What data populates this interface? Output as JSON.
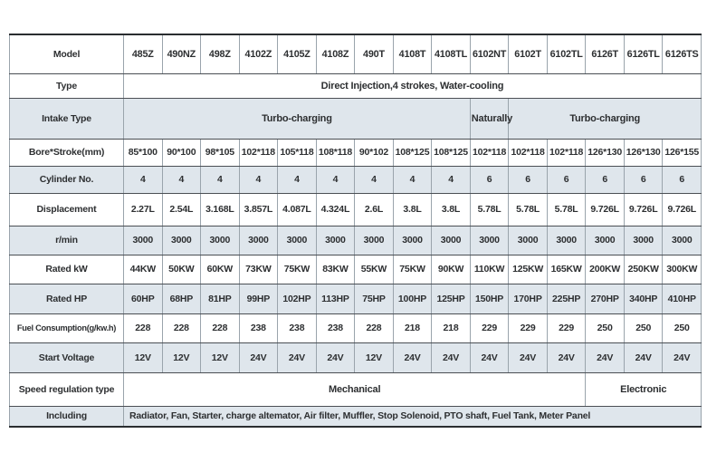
{
  "colors": {
    "row_shade": "#dfe6ec",
    "row_white": "#ffffff",
    "border_horizontal": "#4b4f54",
    "border_vertical": "#9aa4ac",
    "border_outer": "#2a2d30",
    "text": "#2d2f31"
  },
  "table": {
    "rows": [
      {
        "label": "Model",
        "cells": [
          "485Z",
          "490NZ",
          "498Z",
          "4102Z",
          "4105Z",
          "4108Z",
          "490T",
          "4108T",
          "4108TL",
          "6102NT",
          "6102T",
          "6102TL",
          "6126T",
          "6126TL",
          "6126TS"
        ]
      },
      {
        "label": "Type",
        "cells": [
          "Direct Injection,4 strokes, Water-cooling"
        ],
        "spans": [
          15
        ]
      },
      {
        "label": "Intake Type",
        "cells": [
          "Turbo-charging",
          "Naturally",
          "Turbo-charging"
        ],
        "spans": [
          9,
          1,
          5
        ]
      },
      {
        "label": "Bore*Stroke(mm)",
        "cells": [
          "85*100",
          "90*100",
          "98*105",
          "102*118",
          "105*118",
          "108*118",
          "90*102",
          "108*125",
          "108*125",
          "102*118",
          "102*118",
          "102*118",
          "126*130",
          "126*130",
          "126*155"
        ]
      },
      {
        "label": "Cylinder No.",
        "cells": [
          "4",
          "4",
          "4",
          "4",
          "4",
          "4",
          "4",
          "4",
          "4",
          "6",
          "6",
          "6",
          "6",
          "6",
          "6"
        ]
      },
      {
        "label": "Displacement",
        "cells": [
          "2.27L",
          "2.54L",
          "3.168L",
          "3.857L",
          "4.087L",
          "4.324L",
          "2.6L",
          "3.8L",
          "3.8L",
          "5.78L",
          "5.78L",
          "5.78L",
          "9.726L",
          "9.726L",
          "9.726L"
        ]
      },
      {
        "label": "r/min",
        "cells": [
          "3000",
          "3000",
          "3000",
          "3000",
          "3000",
          "3000",
          "3000",
          "3000",
          "3000",
          "3000",
          "3000",
          "3000",
          "3000",
          "3000",
          "3000"
        ]
      },
      {
        "label": "Rated kW",
        "cells": [
          "44KW",
          "50KW",
          "60KW",
          "73KW",
          "75KW",
          "83KW",
          "55KW",
          "75KW",
          "90KW",
          "110KW",
          "125KW",
          "165KW",
          "200KW",
          "250KW",
          "300KW"
        ]
      },
      {
        "label": "Rated HP",
        "cells": [
          "60HP",
          "68HP",
          "81HP",
          "99HP",
          "102HP",
          "113HP",
          "75HP",
          "100HP",
          "125HP",
          "150HP",
          "170HP",
          "225HP",
          "270HP",
          "340HP",
          "410HP"
        ]
      },
      {
        "label": "Fuel Consumption(g/kw.h)",
        "cells": [
          "228",
          "228",
          "228",
          "238",
          "238",
          "238",
          "228",
          "218",
          "218",
          "229",
          "229",
          "229",
          "250",
          "250",
          "250"
        ]
      },
      {
        "label": "Start Voltage",
        "cells": [
          "12V",
          "12V",
          "12V",
          "24V",
          "24V",
          "24V",
          "12V",
          "24V",
          "24V",
          "24V",
          "24V",
          "24V",
          "24V",
          "24V",
          "24V"
        ]
      },
      {
        "label": "Speed regulation type",
        "cells": [
          "Mechanical",
          "Electronic"
        ],
        "spans": [
          12,
          3
        ]
      },
      {
        "label": "Including",
        "cells": [
          "Radiator, Fan, Starter, charge altemator, Air filter, Muffler, Stop Solenoid, PTO shaft, Fuel Tank, Meter Panel"
        ],
        "spans": [
          15
        ]
      }
    ]
  }
}
